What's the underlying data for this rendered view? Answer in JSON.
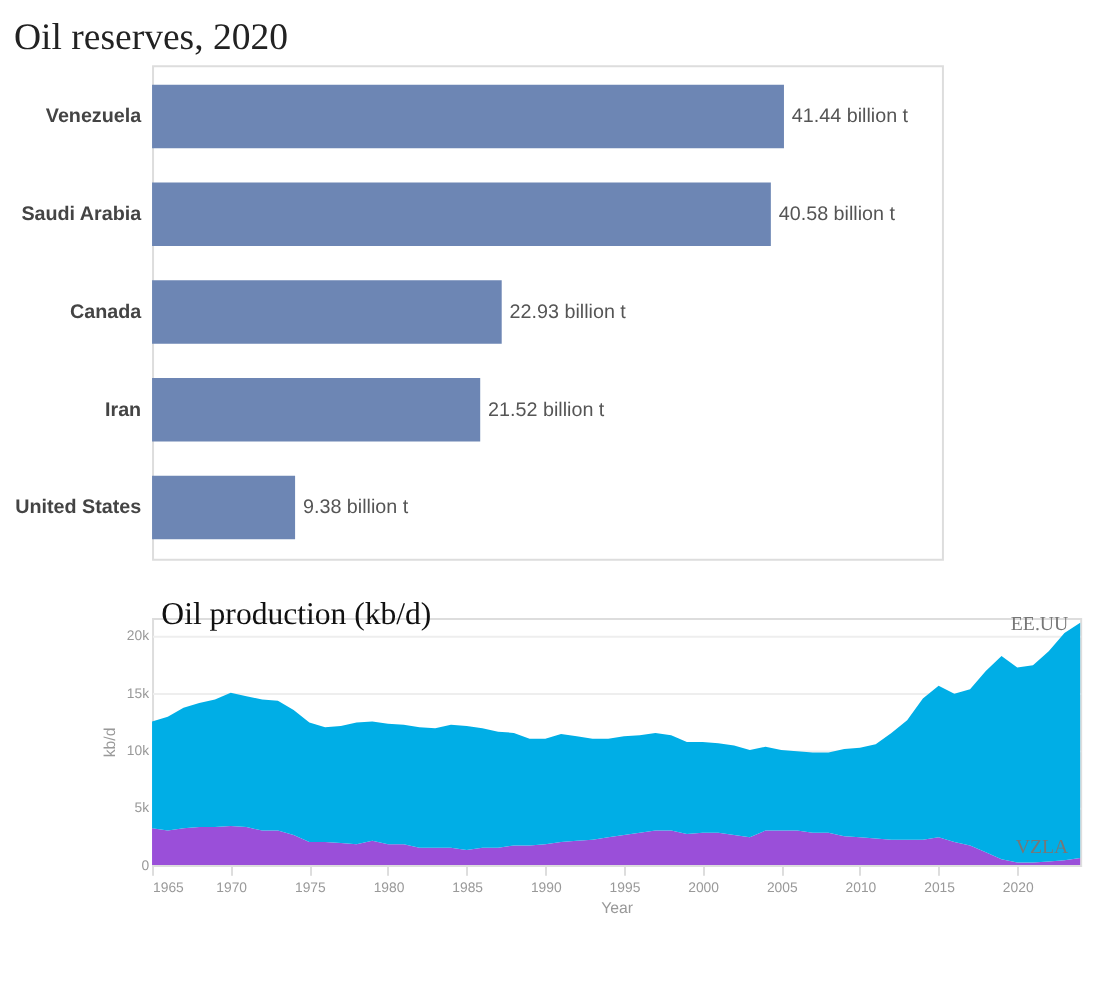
{
  "chart_data": [
    {
      "type": "bar",
      "orientation": "horizontal",
      "title": "Oil reserves, 2020",
      "categories": [
        "Venezuela",
        "Saudi Arabia",
        "Canada",
        "Iran",
        "United States"
      ],
      "values": [
        41.44,
        40.58,
        22.93,
        21.52,
        9.38
      ],
      "color": "#6d86b4",
      "value_labels": [
        "41.44 billion t",
        "40.58 billion t",
        "22.93 billion t",
        "21.52 billion t",
        "9.38 billion t"
      ]
    },
    {
      "type": "area",
      "stacked": true,
      "title": "Oil production (kb/d)",
      "xlabel": "Year",
      "ylabel": "kb/d",
      "x": [
        1965,
        1966,
        1967,
        1968,
        1969,
        1970,
        1971,
        1972,
        1973,
        1974,
        1975,
        1976,
        1977,
        1978,
        1979,
        1980,
        1981,
        1982,
        1983,
        1984,
        1985,
        1986,
        1987,
        1988,
        1989,
        1990,
        1991,
        1992,
        1993,
        1994,
        1995,
        1996,
        1997,
        1998,
        1999,
        2000,
        2001,
        2002,
        2003,
        2004,
        2005,
        2006,
        2007,
        2008,
        2009,
        2010,
        2011,
        2012,
        2013,
        2014,
        2015,
        2016,
        2017,
        2018,
        2019,
        2020,
        2021,
        2022,
        2023,
        2024
      ],
      "series": [
        {
          "name": "VZLA",
          "color": "#9a4fd9",
          "values": [
            3200,
            3000,
            3200,
            3300,
            3300,
            3400,
            3300,
            3000,
            3000,
            2600,
            2000,
            2000,
            1900,
            1800,
            2100,
            1800,
            1800,
            1500,
            1500,
            1500,
            1300,
            1500,
            1500,
            1700,
            1700,
            1800,
            2000,
            2100,
            2200,
            2400,
            2600,
            2800,
            3000,
            3000,
            2700,
            2800,
            2800,
            2600,
            2400,
            3000,
            3000,
            3000,
            2800,
            2800,
            2500,
            2400,
            2300,
            2200,
            2200,
            2200,
            2400,
            2000,
            1700,
            1100,
            500,
            200,
            200,
            300,
            400,
            600
          ]
        },
        {
          "name": "EE.UU",
          "color": "#00aee6",
          "values": [
            9300,
            9900,
            10500,
            10800,
            11100,
            11600,
            11400,
            11400,
            11300,
            10900,
            10400,
            10000,
            10200,
            10600,
            10400,
            10500,
            10400,
            10500,
            10400,
            10700,
            10800,
            10400,
            10100,
            9800,
            9300,
            9200,
            9400,
            9100,
            8800,
            8600,
            8600,
            8500,
            8500,
            8300,
            8000,
            7900,
            7800,
            7800,
            7600,
            7300,
            7000,
            6900,
            7000,
            7000,
            7600,
            7800,
            8200,
            9300,
            10400,
            12300,
            13200,
            12900,
            13600,
            15800,
            17700,
            17000,
            17200,
            18300,
            19800,
            20500
          ]
        }
      ],
      "xlim": [
        1965,
        2024
      ],
      "xticks": [
        1965,
        1970,
        1975,
        1980,
        1985,
        1990,
        1995,
        2000,
        2005,
        2010,
        2015,
        2020
      ],
      "ylim": [
        0,
        21500
      ],
      "yticks": [
        {
          "value": 0,
          "label": "0"
        },
        {
          "value": 5000,
          "label": "5k"
        },
        {
          "value": 10000,
          "label": "10k"
        },
        {
          "value": 15000,
          "label": "15k"
        },
        {
          "value": 20000,
          "label": "20k"
        }
      ],
      "grid": "y"
    }
  ]
}
